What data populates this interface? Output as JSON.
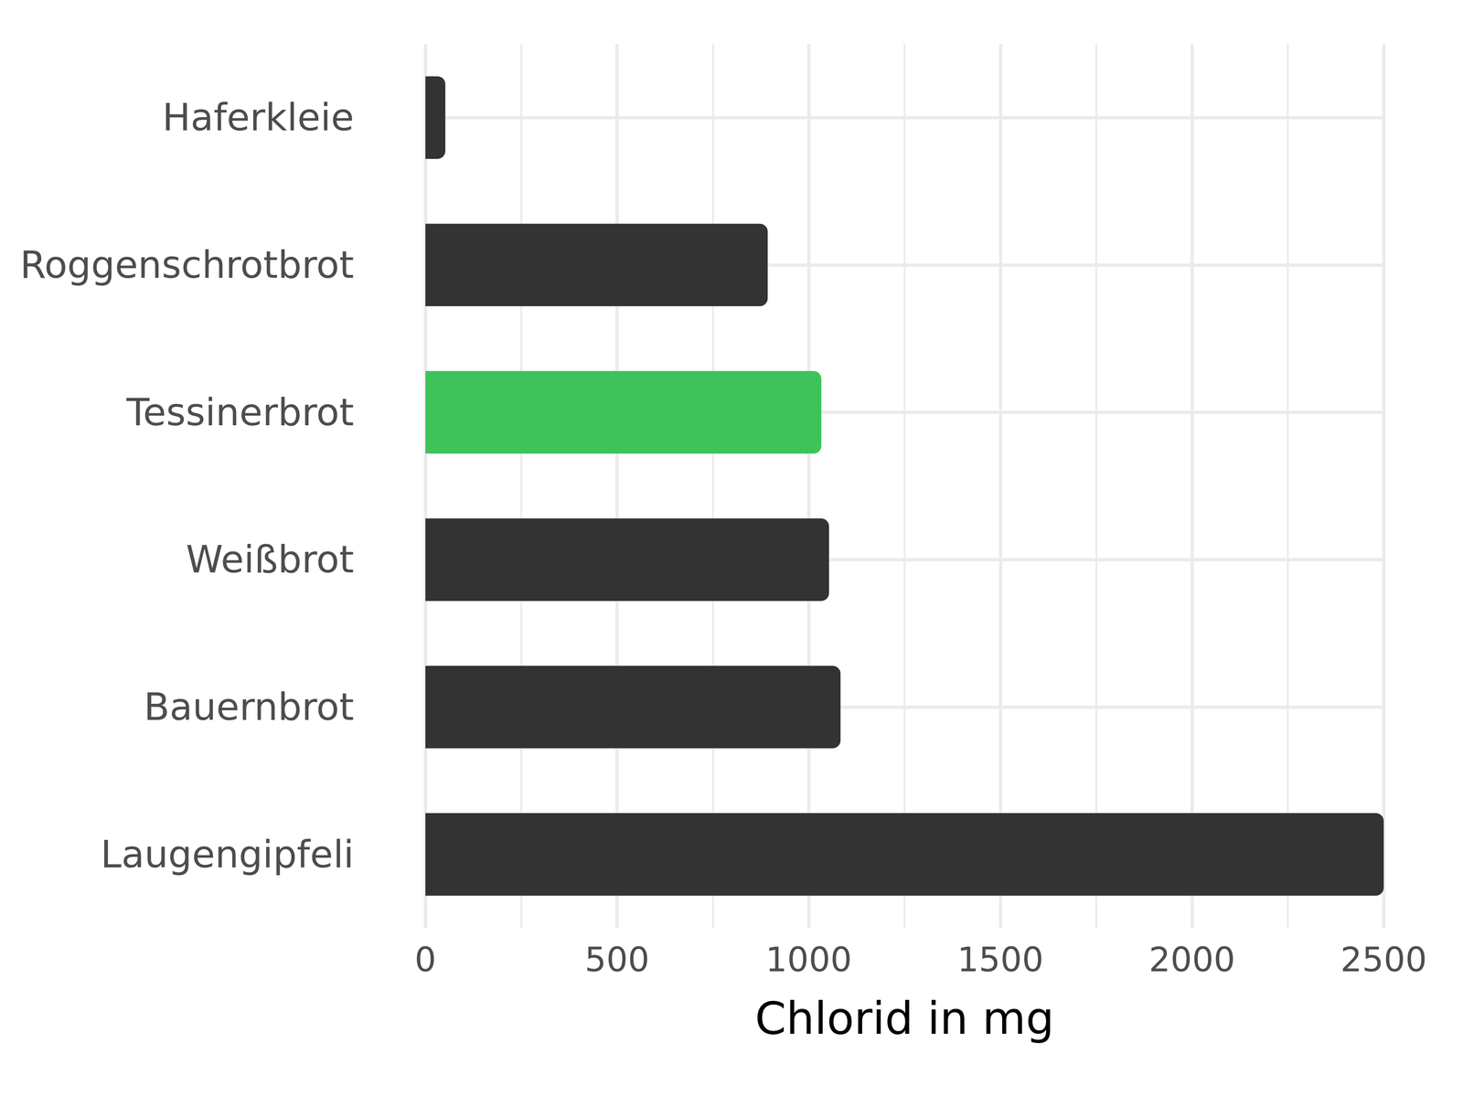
{
  "chart_data": {
    "type": "bar",
    "orientation": "horizontal",
    "x_label": "Chlorid in mg",
    "categories": [
      "Haferkleie",
      "Roggenschrotbrot",
      "Tessinerbrot",
      "Weißbrot",
      "Bauernbrot",
      "Laugengipfeli"
    ],
    "values": [
      52,
      893,
      1033,
      1053,
      1083,
      2500
    ],
    "colors": [
      "#333333",
      "#333333",
      "#3EC35A",
      "#333333",
      "#333333",
      "#333333"
    ],
    "xlim": [
      0,
      2500
    ],
    "xticks": [
      0,
      500,
      1000,
      1500,
      2000,
      2500
    ],
    "grid": true
  }
}
